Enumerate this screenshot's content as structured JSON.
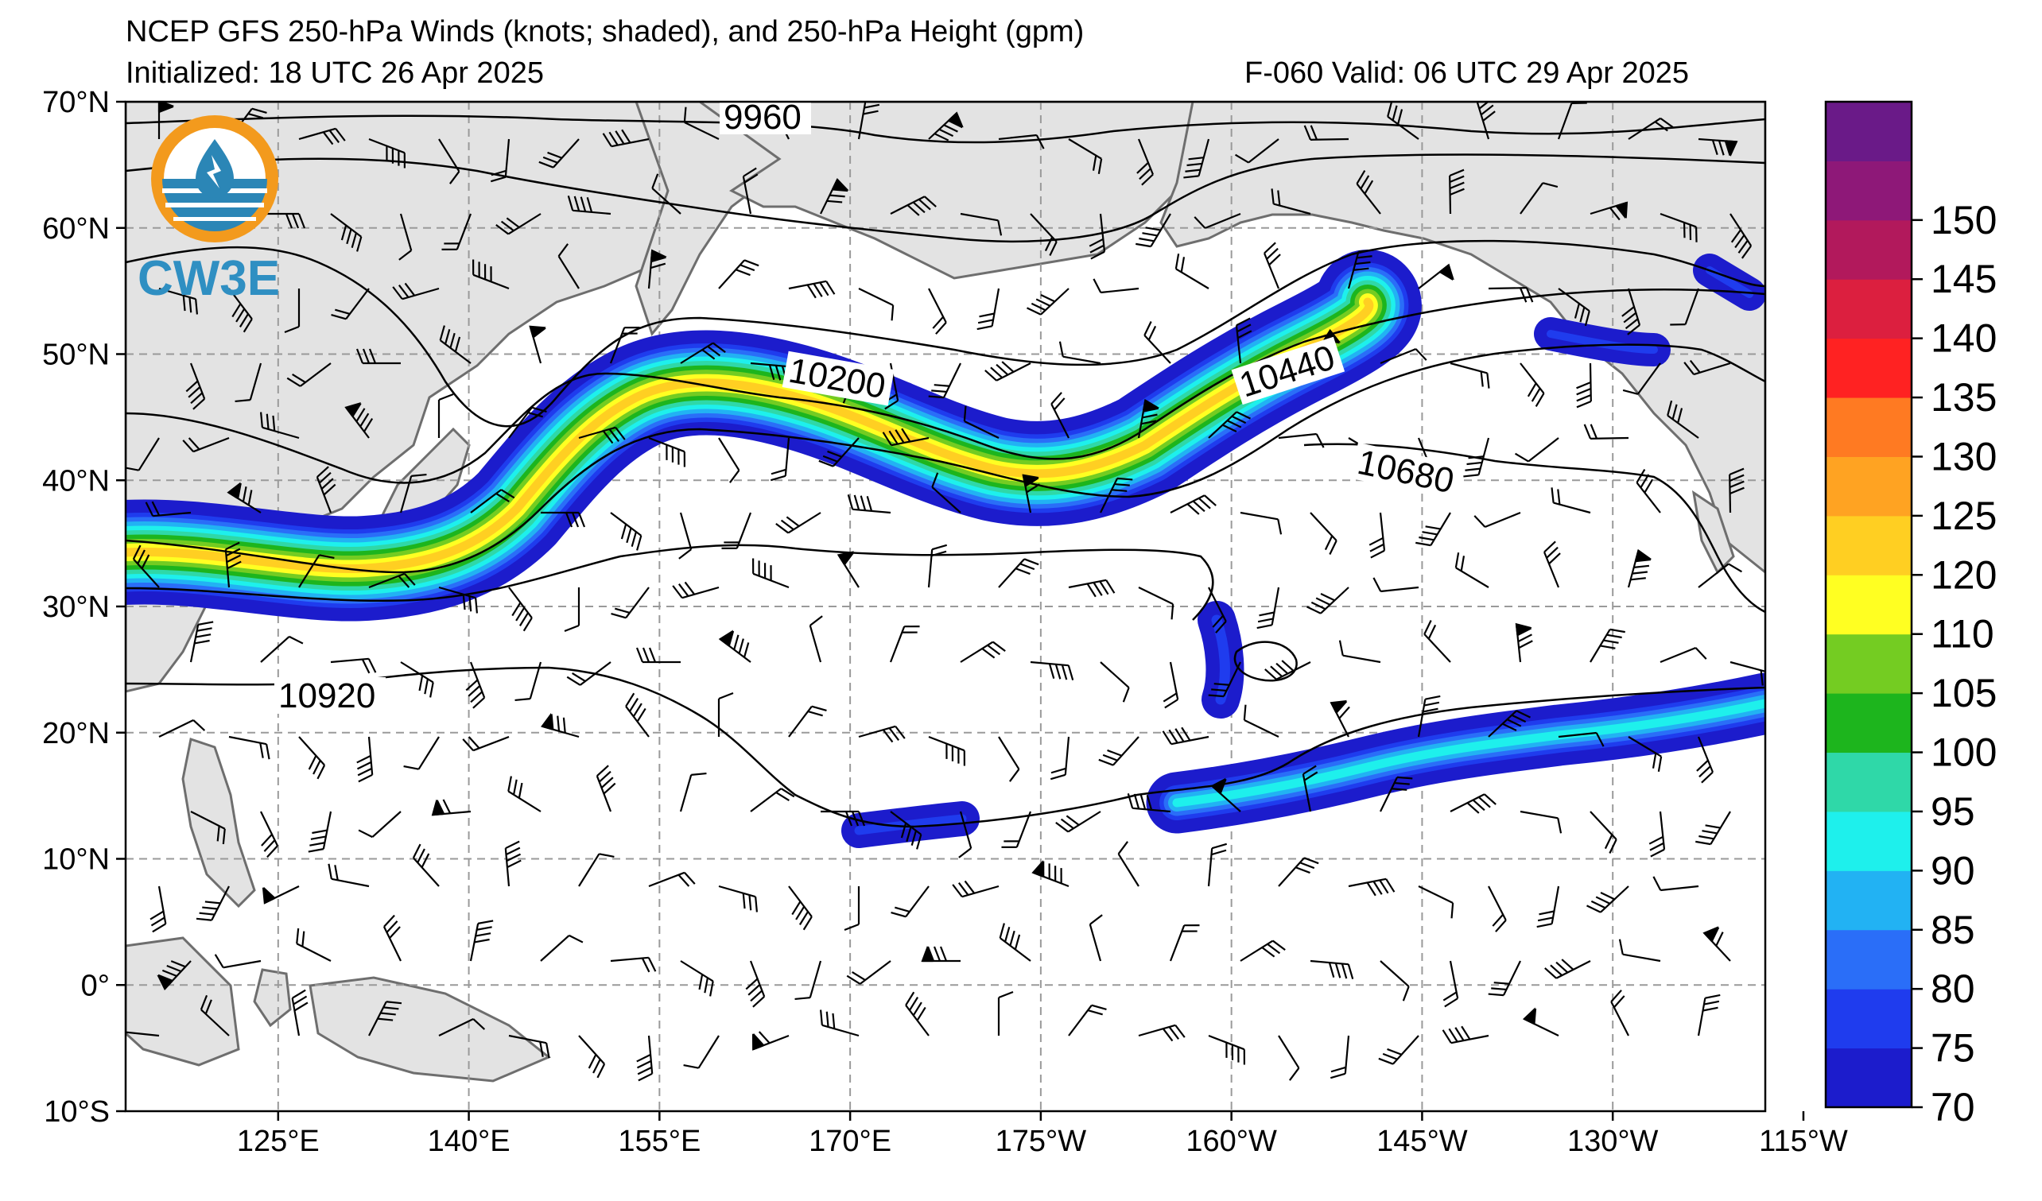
{
  "header": {
    "title": "NCEP GFS 250-hPa Winds (knots; shaded), and 250-hPa Height (gpm)",
    "initialized": "Initialized: 18 UTC 26 Apr 2025",
    "valid": "F-060  Valid: 06 UTC 29 Apr 2025"
  },
  "logo": {
    "text": "CW3E"
  },
  "axes": {
    "lat_labels": [
      "70°N",
      "60°N",
      "50°N",
      "40°N",
      "30°N",
      "20°N",
      "10°N",
      "0°",
      "10°S"
    ],
    "lon_labels": [
      "125°E",
      "140°E",
      "155°E",
      "170°E",
      "175°W",
      "160°W",
      "145°W",
      "130°W",
      "115°W"
    ]
  },
  "colorbar": {
    "unit": "knots",
    "ticks": [
      "70",
      "75",
      "80",
      "85",
      "90",
      "95",
      "100",
      "105",
      "110",
      "120",
      "125",
      "130",
      "135",
      "140",
      "145",
      "150"
    ],
    "colors": [
      "#1c1ccc",
      "#1f3cee",
      "#2a6ef8",
      "#22b2f3",
      "#1ef0ec",
      "#2fd8a8",
      "#1db51d",
      "#74cc22",
      "#ffff22",
      "#ffcf22",
      "#ffa322",
      "#ff7a22",
      "#ff2222",
      "#dc1f3f",
      "#b2195c",
      "#8e1878",
      "#6a1a88"
    ]
  },
  "contours": {
    "labels": [
      "9960",
      "10200",
      "10440",
      "10680",
      "10920"
    ],
    "colors": {
      "line": "#000000",
      "land": "#e3e3e3",
      "coast": "#6e6e6e",
      "grid": "#9a9a9a"
    }
  }
}
